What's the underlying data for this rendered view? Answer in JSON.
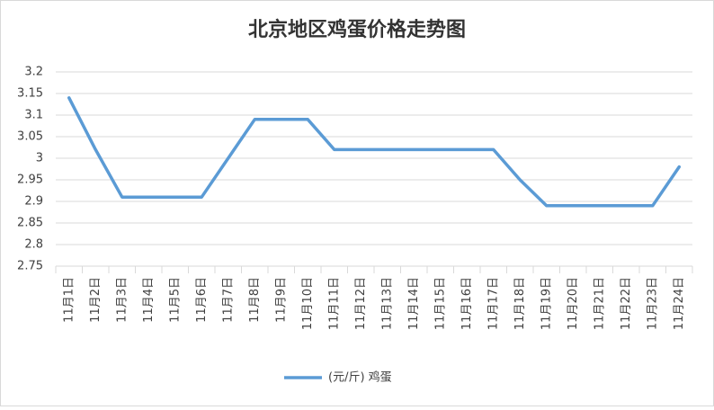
{
  "chart_data": {
    "type": "line",
    "title": "北京地区鸡蛋价格走势图",
    "categories": [
      "11月1日",
      "11月2日",
      "11月3日",
      "11月4日",
      "11月5日",
      "11月6日",
      "11月7日",
      "11月8日",
      "11月9日",
      "11月10日",
      "11月11日",
      "11月12日",
      "11月13日",
      "11月14日",
      "11月15日",
      "11月16日",
      "11月17日",
      "11月18日",
      "11月19日",
      "11月20日",
      "11月21日",
      "11月22日",
      "11月23日",
      "11月24日"
    ],
    "series": [
      {
        "name": "(元/斤) 鸡蛋",
        "color": "#5b9bd5",
        "values": [
          3.14,
          3.02,
          2.91,
          2.91,
          2.91,
          2.91,
          3.0,
          3.09,
          3.09,
          3.09,
          3.02,
          3.02,
          3.02,
          3.02,
          3.02,
          3.02,
          3.02,
          2.95,
          2.89,
          2.89,
          2.89,
          2.89,
          2.89,
          2.98
        ]
      }
    ],
    "ylim": [
      2.75,
      3.2
    ],
    "yticks": [
      2.75,
      2.8,
      2.85,
      2.9,
      2.95,
      3,
      3.05,
      3.1,
      3.15,
      3.2
    ],
    "grid": true,
    "legend": "bottom"
  }
}
